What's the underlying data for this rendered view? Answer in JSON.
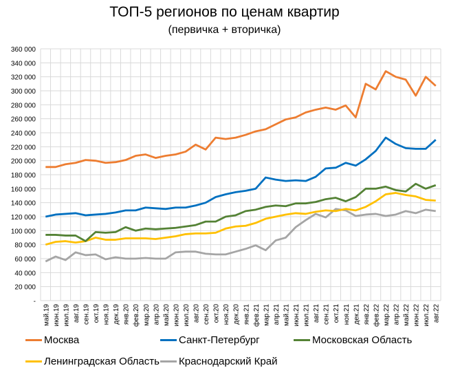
{
  "chart_data": {
    "type": "line",
    "title": "ТОП-5 регионов по ценам квартир",
    "subtitle": "(первичка + вторичка)",
    "xlabel": "",
    "ylabel": "",
    "ylim": [
      0,
      360000
    ],
    "yticks": [
      "-",
      "20 000",
      "40 000",
      "60 000",
      "80 000",
      "100 000",
      "120 000",
      "140 000",
      "160 000",
      "180 000",
      "200 000",
      "220 000",
      "240 000",
      "260 000",
      "280 000",
      "300 000",
      "320 000",
      "340 000",
      "360 000"
    ],
    "grid": true,
    "legend": "bottom",
    "categories": [
      "май.19",
      "июн.19",
      "июл.19",
      "авг.19",
      "сен.19",
      "окт.19",
      "ноя.19",
      "дек.19",
      "янв.20",
      "фев.20",
      "мар.20",
      "апр.20",
      "май.20",
      "июн.20",
      "июл.20",
      "авг.20",
      "сен.20",
      "окт.20",
      "ноя.20",
      "дек.20",
      "янв.21",
      "фев.21",
      "мар.21",
      "апр.21",
      "май.21",
      "июн.21",
      "июл.21",
      "авг.21",
      "сен.21",
      "окт.21",
      "ноя.21",
      "дек.21",
      "янв.22",
      "фев.22",
      "мар.22",
      "апр.22",
      "май.22",
      "июн.22",
      "июл.22",
      "авг.22"
    ],
    "series": [
      {
        "name": "Москва",
        "color": "#ED7D31",
        "values": [
          191000,
          191000,
          195000,
          197000,
          201000,
          200000,
          197000,
          198000,
          201000,
          207000,
          209000,
          204000,
          207000,
          209000,
          213000,
          223000,
          216000,
          233000,
          231000,
          233000,
          237000,
          242000,
          245000,
          252000,
          259000,
          262000,
          269000,
          273000,
          276000,
          273000,
          279000,
          262000,
          310000,
          302000,
          328000,
          320000,
          316000,
          293000,
          320000,
          307000
        ]
      },
      {
        "name": "Санкт-Петербург",
        "color": "#0070C0",
        "values": [
          120000,
          123000,
          124000,
          125000,
          122000,
          123000,
          124000,
          126000,
          129000,
          129000,
          133000,
          132000,
          131000,
          133000,
          133000,
          136000,
          140000,
          148000,
          152000,
          155000,
          157000,
          160000,
          176000,
          173000,
          171000,
          172000,
          171000,
          177000,
          189000,
          190000,
          197000,
          193000,
          202000,
          214000,
          233000,
          224000,
          218000,
          217000,
          217000,
          230000
        ]
      },
      {
        "name": "Московская Область",
        "color": "#548235",
        "values": [
          94000,
          94000,
          93000,
          93000,
          85000,
          98000,
          97000,
          98000,
          105000,
          100000,
          103000,
          102000,
          103000,
          104000,
          106000,
          108000,
          113000,
          113000,
          120000,
          122000,
          128000,
          130000,
          134000,
          136000,
          135000,
          139000,
          139000,
          141000,
          145000,
          147000,
          142000,
          148000,
          160000,
          160000,
          163000,
          158000,
          156000,
          167000,
          160000,
          165000
        ]
      },
      {
        "name": "Ленинградская Область",
        "color": "#FFC000",
        "values": [
          80000,
          84000,
          85000,
          83000,
          85000,
          90000,
          87000,
          87000,
          89000,
          89000,
          89000,
          88000,
          90000,
          92000,
          95000,
          96000,
          96000,
          97000,
          103000,
          106000,
          107000,
          111000,
          117000,
          120000,
          123000,
          125000,
          124000,
          127000,
          129000,
          128000,
          131000,
          129000,
          134000,
          142000,
          152000,
          154000,
          151000,
          149000,
          144000,
          143000
        ]
      },
      {
        "name": "Краснодарский Край",
        "color": "#A5A5A5",
        "values": [
          56000,
          63000,
          58000,
          69000,
          65000,
          66000,
          59000,
          62000,
          60000,
          60000,
          61000,
          60000,
          60000,
          69000,
          70000,
          70000,
          67000,
          66000,
          66000,
          70000,
          74000,
          79000,
          72000,
          86000,
          90000,
          105000,
          115000,
          124000,
          119000,
          131000,
          129000,
          121000,
          123000,
          124000,
          121000,
          123000,
          128000,
          125000,
          130000,
          128000
        ]
      }
    ]
  }
}
